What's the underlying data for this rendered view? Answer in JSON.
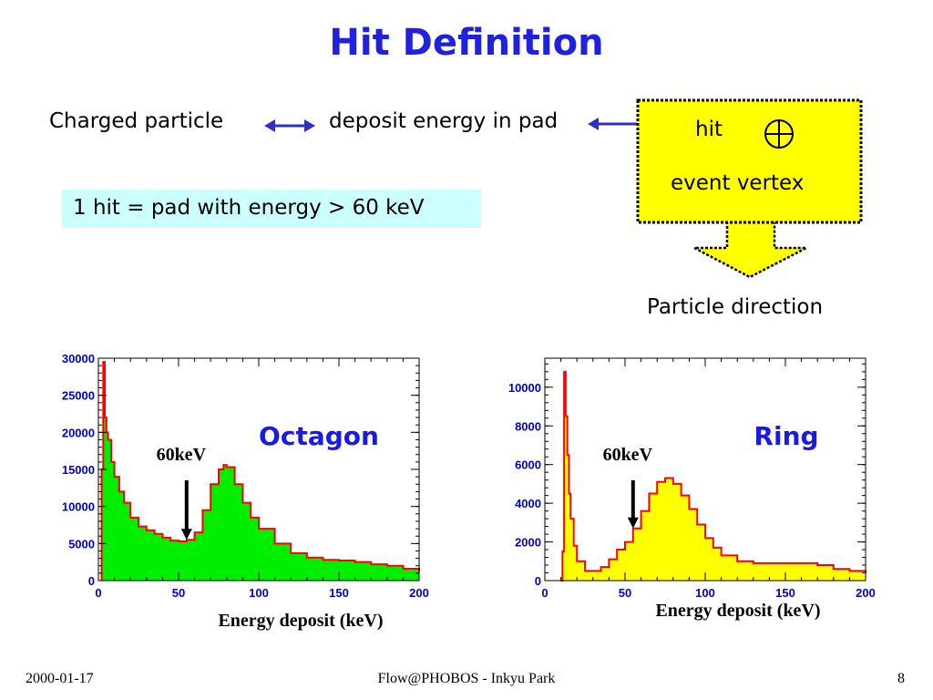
{
  "slide": {
    "title": "Hit Definition",
    "charged_particle": "Charged particle",
    "deposit_energy": "deposit energy in pad",
    "hit_label": "hit",
    "vertex_label": "event vertex",
    "definition": "1 hit = pad with energy > 60 keV",
    "particle_direction": "Particle direction",
    "footer_date": "2000-01-17",
    "footer_center": "Flow@PHOBOS - Inkyu Park",
    "footer_page": "8",
    "colors": {
      "title": "#2020e0",
      "arrow": "#3030c0",
      "highlight": "#ffff00",
      "cyan": "#ccffff"
    }
  },
  "chart_data": [
    {
      "type": "area",
      "title": "Octagon",
      "xlabel": "Energy deposit (keV)",
      "ylabel": "",
      "xlim": [
        0,
        200
      ],
      "ylim": [
        0,
        30000
      ],
      "xticks": [
        "0",
        "50",
        "100",
        "150",
        "200"
      ],
      "yticks": [
        "0",
        "5000",
        "10000",
        "15000",
        "20000",
        "25000",
        "30000"
      ],
      "annotation": "60keV",
      "annotation_x": 55,
      "fill_color": "#00ee00",
      "line_color": "#ff0000",
      "x": [
        2,
        3,
        4,
        5,
        6,
        8,
        10,
        13,
        16,
        20,
        25,
        30,
        35,
        40,
        45,
        50,
        55,
        60,
        65,
        70,
        75,
        78,
        80,
        85,
        90,
        95,
        100,
        110,
        120,
        130,
        140,
        150,
        160,
        170,
        180,
        190,
        200
      ],
      "y": [
        15000,
        29500,
        22000,
        20000,
        19000,
        16000,
        14000,
        12000,
        10500,
        8500,
        7300,
        6800,
        6300,
        5800,
        5400,
        5300,
        5500,
        6500,
        9500,
        13000,
        15000,
        15600,
        15300,
        13000,
        10500,
        8500,
        7000,
        5000,
        3700,
        3100,
        2800,
        2700,
        2500,
        2200,
        2000,
        1600,
        1200
      ]
    },
    {
      "type": "area",
      "title": "Ring",
      "xlabel": "Energy deposit (keV)",
      "ylabel": "",
      "xlim": [
        0,
        200
      ],
      "ylim": [
        0,
        11500
      ],
      "xticks": [
        "0",
        "50",
        "100",
        "150",
        "200"
      ],
      "yticks": [
        "0",
        "2000",
        "4000",
        "6000",
        "8000",
        "10000"
      ],
      "annotation": "60keV",
      "annotation_x": 55,
      "fill_color": "#ffff00",
      "line_color": "#ff0000",
      "x": [
        10,
        11,
        12,
        13,
        14,
        15,
        16,
        18,
        20,
        25,
        30,
        35,
        40,
        45,
        50,
        55,
        60,
        65,
        70,
        75,
        80,
        85,
        90,
        95,
        100,
        105,
        110,
        120,
        130,
        140,
        150,
        160,
        170,
        180,
        190,
        200
      ],
      "y": [
        0,
        1500,
        10800,
        8500,
        6500,
        4500,
        3200,
        1800,
        1000,
        500,
        500,
        700,
        1100,
        1600,
        2000,
        2700,
        3600,
        4500,
        5100,
        5300,
        5000,
        4400,
        3700,
        2900,
        2200,
        1700,
        1300,
        1000,
        900,
        900,
        900,
        900,
        800,
        600,
        500,
        400
      ]
    }
  ]
}
